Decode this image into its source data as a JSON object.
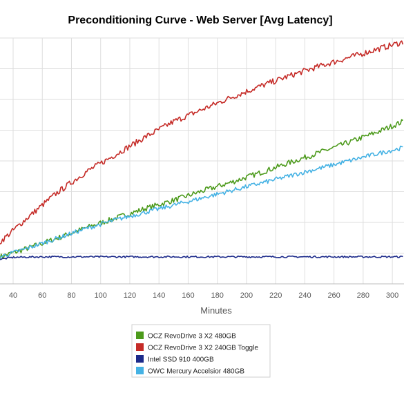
{
  "chart_data": {
    "type": "line",
    "title": "Preconditioning Curve - Web Server [Avg Latency]",
    "xlabel": "Minutes",
    "ylabel": "",
    "x_ticks": [
      40,
      60,
      80,
      100,
      120,
      140,
      160,
      180,
      200,
      220,
      240,
      260,
      280,
      300
    ],
    "xlim": [
      31,
      308
    ],
    "ylim": [
      0,
      100
    ],
    "grid": true,
    "legend_position": "bottom",
    "series": [
      {
        "name": "OCZ RevoDrive 3 X2 480GB",
        "color": "#4c9a1b",
        "x": [
          31,
          50,
          70,
          90,
          110,
          130,
          150,
          170,
          190,
          210,
          230,
          250,
          270,
          290,
          308
        ],
        "values": [
          11.0,
          14.5,
          18.5,
          22.8,
          26.7,
          30.5,
          34.0,
          37.8,
          41.4,
          45.3,
          49.4,
          53.4,
          57.5,
          61.8,
          66.2
        ]
      },
      {
        "name": "OCZ RevoDrive 3 X2 240GB Toggle",
        "color": "#c52b27",
        "x": [
          31,
          50,
          70,
          90,
          110,
          130,
          150,
          170,
          190,
          210,
          230,
          250,
          270,
          290,
          308
        ],
        "values": [
          17.0,
          27.0,
          37.0,
          45.5,
          52.5,
          59.5,
          66.0,
          71.0,
          76.0,
          80.5,
          84.7,
          88.5,
          92.0,
          95.5,
          98.5
        ]
      },
      {
        "name": "Intel SSD 910 400GB",
        "color": "#1c2a8a",
        "x": [
          31,
          40,
          60,
          80,
          100,
          120,
          140,
          160,
          180,
          200,
          220,
          240,
          260,
          280,
          300,
          308
        ],
        "values": [
          10.0,
          10.8,
          11.0,
          11.0,
          11.0,
          11.0,
          11.0,
          11.0,
          11.0,
          11.0,
          11.0,
          11.0,
          11.0,
          11.0,
          11.0,
          11.0
        ]
      },
      {
        "name": "OWC Mercury Accelsior 480GB",
        "color": "#45b2e4",
        "x": [
          31,
          50,
          70,
          90,
          110,
          130,
          150,
          170,
          190,
          210,
          230,
          250,
          270,
          290,
          308
        ],
        "values": [
          11.0,
          14.5,
          18.5,
          22.5,
          26.0,
          29.0,
          32.0,
          35.0,
          38.0,
          41.0,
          44.0,
          47.0,
          50.0,
          53.0,
          55.5
        ]
      }
    ]
  }
}
